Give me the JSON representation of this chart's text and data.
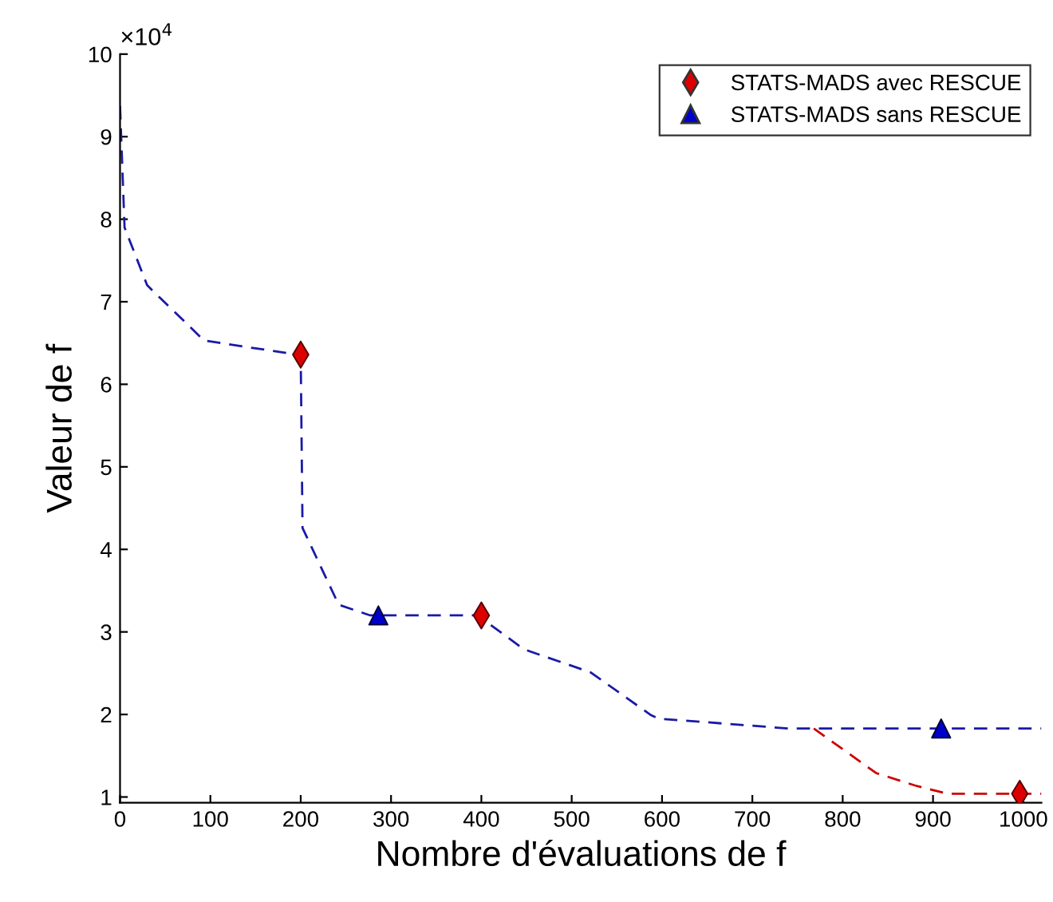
{
  "chart_data": {
    "type": "line",
    "xlabel": "Nombre d'évaluations de f",
    "ylabel": "Valeur de f",
    "annotations": [
      "×10$^{4}$"
    ],
    "xlim": [
      0,
      1020
    ],
    "xticks": [
      0,
      100,
      200,
      300,
      400,
      500,
      600,
      700,
      800,
      900,
      1000
    ],
    "ylim": [
      0.93,
      10
    ],
    "yticks": [
      1,
      2,
      3,
      4,
      5,
      6,
      7,
      8,
      9,
      10
    ],
    "grid": false,
    "legend": "top right",
    "series": [
      {
        "color": "#cc0000",
        "line_style": "dashed",
        "marker": "none",
        "x": [
          768,
          837,
          880,
          916,
          1020
        ],
        "values": [
          1.83,
          1.29,
          1.14,
          1.04,
          1.04
        ]
      },
      {
        "color": "#1a1aa6",
        "line_style": "dashed",
        "marker": "none",
        "x": [
          0,
          5,
          30,
          93,
          196,
          200,
          202,
          242,
          277,
          396,
          447,
          521,
          588,
          596,
          740,
          1020
        ],
        "values": [
          9.37,
          7.9,
          7.2,
          6.53,
          6.36,
          6.36,
          4.26,
          3.33,
          3.2,
          3.2,
          2.79,
          2.51,
          1.99,
          1.95,
          1.83,
          1.83
        ]
      },
      {
        "type": "scatter",
        "name": "STATS-MADS avec RESCUE",
        "color": "#dd0000",
        "marker": "diamond",
        "x": [
          200,
          400,
          996
        ],
        "values": [
          6.36,
          3.2,
          1.04
        ]
      },
      {
        "type": "scatter",
        "name": "STATS-MADS sans RESCUE",
        "color": "#0000cc",
        "marker": "triangle",
        "x": [
          286,
          909
        ],
        "values": [
          3.2,
          1.83
        ]
      }
    ]
  }
}
